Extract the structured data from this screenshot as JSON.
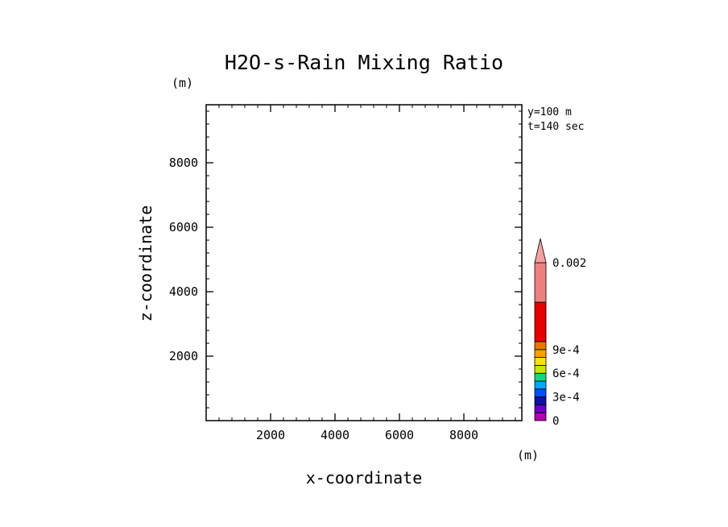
{
  "chart_data": {
    "type": "heatmap",
    "title": "H2O-s-Rain Mixing Ratio",
    "xlabel": "x-coordinate",
    "ylabel": "z-coordinate",
    "x_unit": "(m)",
    "y_unit": "(m)",
    "xlim": [
      0,
      9800
    ],
    "ylim": [
      0,
      9800
    ],
    "x_ticks": [
      2000,
      4000,
      6000,
      8000
    ],
    "y_ticks": [
      2000,
      4000,
      6000,
      8000
    ],
    "x_minor_step": 400,
    "y_minor_step": 400,
    "info": [
      "y=100 m",
      "t=140 sec"
    ],
    "colorbar": {
      "levels": [
        0,
        0.0001,
        0.0002,
        0.0003,
        0.0004,
        0.0005,
        0.0006,
        0.0007,
        0.0008,
        0.0009,
        0.001,
        0.0015,
        0.002
      ],
      "colors": [
        "#b000b0",
        "#6a00c8",
        "#1010a0",
        "#0050ff",
        "#00a8ff",
        "#10d880",
        "#c8e600",
        "#ffe000",
        "#ffa000",
        "#e87800",
        "#e80000",
        "#f08080"
      ],
      "over_color": "#f4a0a0",
      "labels": [
        {
          "value": 0,
          "text": "0"
        },
        {
          "value": 0.0003,
          "text": "3e-4"
        },
        {
          "value": 0.0006,
          "text": "6e-4"
        },
        {
          "value": 0.0009,
          "text": "9e-4"
        },
        {
          "value": 0.002,
          "text": "0.002"
        }
      ]
    },
    "values": []
  }
}
